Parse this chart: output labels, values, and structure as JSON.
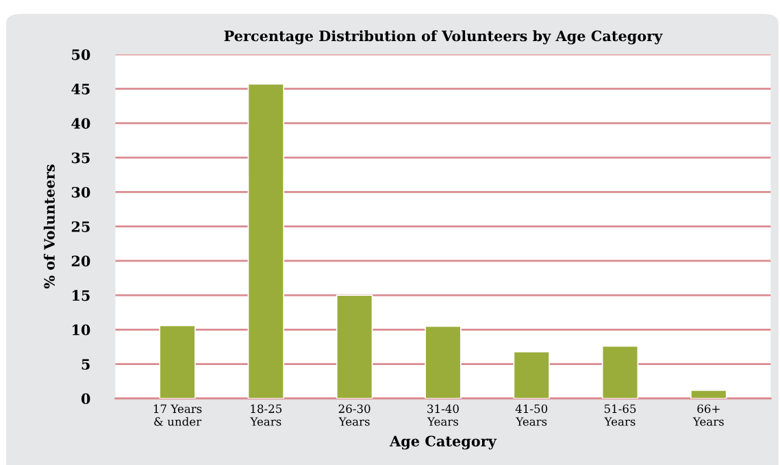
{
  "chart_data": {
    "type": "bar",
    "title": "Percentage Distribution of Volunteers by Age Category",
    "xlabel": "Age Category",
    "ylabel": "% of Volunteers",
    "categories": [
      "17 Years\n& under",
      "18-25\nYears",
      "26-30\nYears",
      "31-40\nYears",
      "41-50\nYears",
      "51-65\nYears",
      "66+\nYears"
    ],
    "values": [
      10.6,
      45.7,
      15.0,
      10.5,
      6.8,
      7.6,
      1.2
    ],
    "color": "#9aad3a",
    "ylim": [
      0,
      50
    ],
    "yticks": [
      0,
      5,
      10,
      15,
      20,
      25,
      30,
      35,
      40,
      45,
      50
    ],
    "grid": "y"
  }
}
